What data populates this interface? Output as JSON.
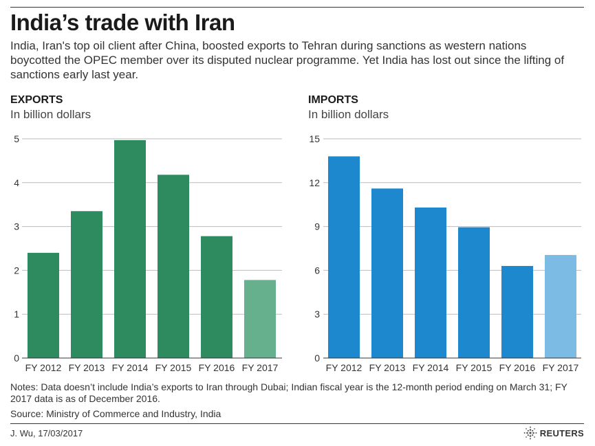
{
  "title": "India’s trade with Iran",
  "subtitle": "India, Iran's top oil client after China, boosted exports to Tehran during sanctions as western nations boycotted the OPEC member over its disputed nuclear programme. Yet India has lost out since the lifting of sanctions early last year.",
  "notes": "Notes: Data doesn’t include India’s exports to Iran through Dubai; Indian fiscal year is the 12-month period ending on March 31; FY 2017 data is as of December 2016.",
  "source": "Source: Ministry of Commerce and Industry, India",
  "credit": "J. Wu,  17/03/2017",
  "brand": "REUTERS",
  "colors": {
    "exports": "#2e8b5f",
    "exports_partial": "#66b08e",
    "imports": "#1e88cf",
    "imports_partial": "#7cbce4",
    "grid": "#bbbbbb",
    "baseline": "#333333"
  },
  "chart_data": [
    {
      "id": "exports",
      "type": "bar",
      "title": "EXPORTS",
      "ylabel": "In billion dollars",
      "categories": [
        "FY 2012",
        "FY 2013",
        "FY 2014",
        "FY 2015",
        "FY 2016",
        "FY 2017"
      ],
      "values": [
        2.4,
        3.35,
        4.97,
        4.18,
        2.78,
        1.78
      ],
      "highlight_last": true,
      "ylim": [
        0,
        5
      ],
      "yticks": [
        0,
        1,
        2,
        3,
        4,
        5
      ],
      "grid": true
    },
    {
      "id": "imports",
      "type": "bar",
      "title": "IMPORTS",
      "ylabel": "In billion dollars",
      "categories": [
        "FY 2012",
        "FY 2013",
        "FY 2014",
        "FY 2015",
        "FY 2016",
        "FY 2017"
      ],
      "values": [
        13.8,
        11.6,
        10.3,
        8.95,
        6.3,
        7.05
      ],
      "highlight_last": true,
      "ylim": [
        0,
        15
      ],
      "yticks": [
        0,
        3,
        6,
        9,
        12,
        15
      ],
      "grid": true
    }
  ]
}
